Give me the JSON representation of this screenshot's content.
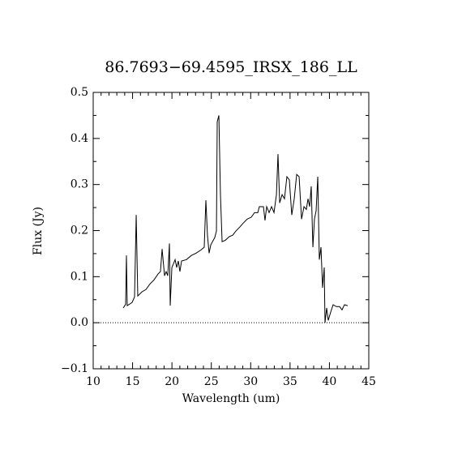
{
  "chart_data": {
    "type": "line",
    "title": "86.7693−69.4595_IRSX_186_LL",
    "x_label": "Wavelength (um)",
    "y_label": "Flux (Jy)",
    "color": "#000000",
    "zero_line": 0,
    "x": [
      13.81,
      14.12,
      14.22,
      14.32,
      14.94,
      15.25,
      15.46,
      15.66,
      16.18,
      16.69,
      17.2,
      17.72,
      18.24,
      18.54,
      18.75,
      19.06,
      19.26,
      19.47,
      19.68,
      19.78,
      19.99,
      20.19,
      20.4,
      20.6,
      20.81,
      21.01,
      21.22,
      21.84,
      22.46,
      23.07,
      23.69,
      24.1,
      24.31,
      24.51,
      24.72,
      24.93,
      25.44,
      25.65,
      25.75,
      25.96,
      26.16,
      26.37,
      26.78,
      27.29,
      27.71,
      28.12,
      28.63,
      29.04,
      29.56,
      30.07,
      30.49,
      30.9,
      31.1,
      31.62,
      31.82,
      32.03,
      32.34,
      32.65,
      32.96,
      33.27,
      33.47,
      33.68,
      33.99,
      34.29,
      34.6,
      34.91,
      35.22,
      35.53,
      35.84,
      36.15,
      36.46,
      36.77,
      37.07,
      37.28,
      37.49,
      37.69,
      37.9,
      38.1,
      38.31,
      38.52,
      38.72,
      38.93,
      39.13,
      39.34,
      39.44,
      39.65,
      39.85,
      40.16,
      40.47,
      40.88,
      41.29,
      41.6,
      41.91,
      42.32
    ],
    "values": [
      0.032,
      0.04,
      0.146,
      0.037,
      0.044,
      0.056,
      0.234,
      0.058,
      0.067,
      0.072,
      0.084,
      0.093,
      0.106,
      0.111,
      0.16,
      0.102,
      0.111,
      0.102,
      0.172,
      0.037,
      0.12,
      0.128,
      0.137,
      0.12,
      0.134,
      0.111,
      0.134,
      0.137,
      0.146,
      0.151,
      0.158,
      0.164,
      0.266,
      0.19,
      0.151,
      0.169,
      0.185,
      0.199,
      0.436,
      0.45,
      0.278,
      0.176,
      0.179,
      0.187,
      0.19,
      0.199,
      0.208,
      0.216,
      0.225,
      0.229,
      0.239,
      0.239,
      0.252,
      0.252,
      0.222,
      0.252,
      0.239,
      0.252,
      0.239,
      0.278,
      0.366,
      0.26,
      0.278,
      0.269,
      0.317,
      0.31,
      0.234,
      0.269,
      0.322,
      0.317,
      0.225,
      0.252,
      0.246,
      0.269,
      0.252,
      0.296,
      0.164,
      0.225,
      0.243,
      0.317,
      0.137,
      0.164,
      0.076,
      0.12,
      0.0,
      0.032,
      0.005,
      0.023,
      0.039,
      0.035,
      0.035,
      0.028,
      0.039,
      0.037
    ],
    "xlim": [
      10,
      45
    ],
    "xticks": [
      10,
      15,
      20,
      25,
      30,
      35,
      40,
      45
    ],
    "ylim": [
      -0.1,
      0.5
    ],
    "yticks": [
      {
        "value": -0.1,
        "label": "−0.1"
      },
      {
        "value": 0,
        "label": "0.0"
      },
      0.1,
      0.2,
      0.3,
      0.4,
      0.5
    ]
  }
}
